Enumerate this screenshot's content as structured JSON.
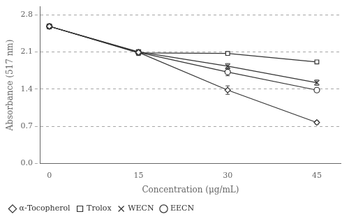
{
  "chart_data": {
    "type": "line",
    "x": [
      0,
      15,
      30,
      45
    ],
    "series": [
      {
        "name": "α-Tocopherol",
        "color": "#333333",
        "marker": "diamond",
        "values": [
          2.58,
          2.09,
          1.38,
          0.77
        ],
        "yerr": [
          0.04,
          0.05,
          0.08,
          0.03
        ]
      },
      {
        "name": "Trolox",
        "color": "#333333",
        "marker": "square",
        "values": [
          2.58,
          2.08,
          2.07,
          1.91
        ],
        "yerr": [
          0.04,
          0.05,
          0.03,
          0.03
        ]
      },
      {
        "name": "WECN",
        "color": "#333333",
        "marker": "x",
        "values": [
          2.58,
          2.1,
          1.83,
          1.52
        ],
        "yerr": [
          0.04,
          0.03,
          0.05,
          0.05
        ]
      },
      {
        "name": "EECN",
        "color": "#333333",
        "marker": "circle",
        "values": [
          2.58,
          2.09,
          1.72,
          1.38
        ],
        "yerr": [
          0.04,
          0.03,
          0.07,
          0.04
        ]
      }
    ],
    "xlabel": "Concentration (μg/mL)",
    "ylabel": "Absorbance (517 nm)",
    "xlim": [
      -1.5,
      49
    ],
    "ylim": [
      0,
      2.95
    ],
    "xticks": [
      0,
      15,
      30,
      45
    ],
    "yticks": [
      {
        "value": 0,
        "label": "0.0"
      },
      0.7,
      1.4,
      2.1,
      2.8
    ],
    "grid": true,
    "legend": "lower left"
  }
}
